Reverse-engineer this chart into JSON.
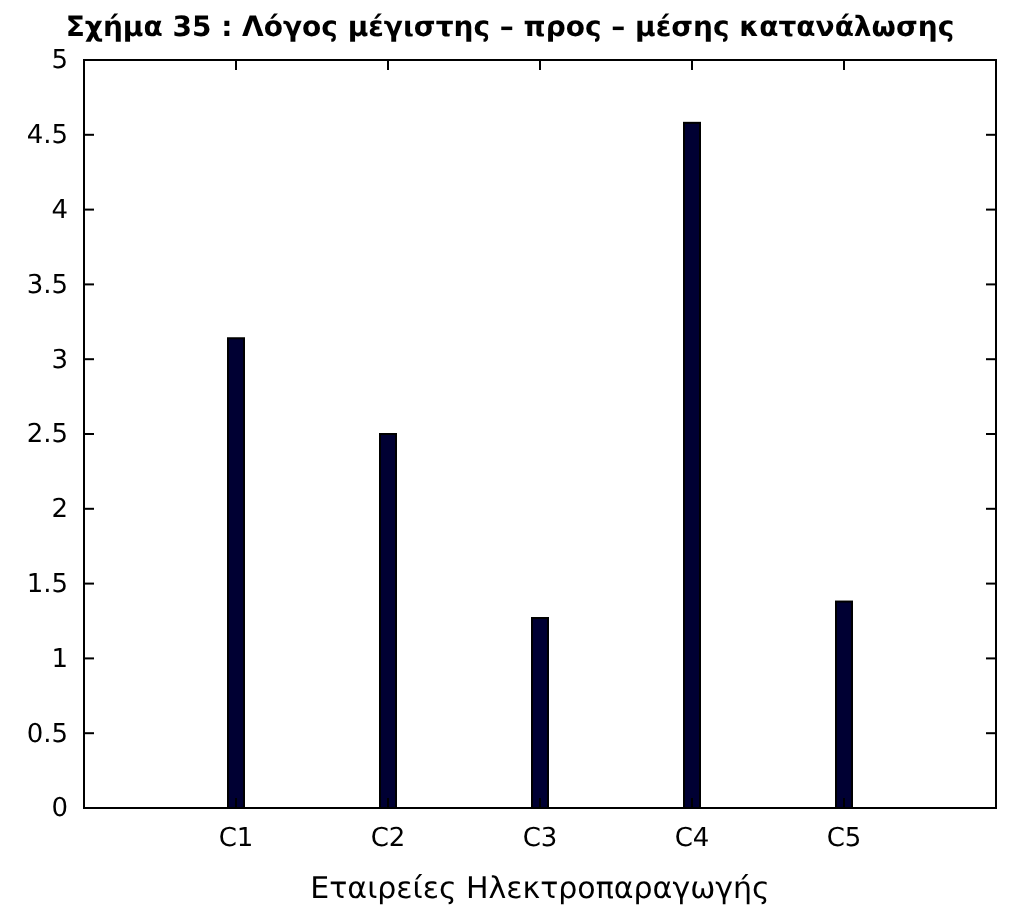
{
  "chart_data": {
    "type": "bar",
    "title": "Σχήμα 35 : Λόγος μέγιστης – προς – μέσης κατανάλωσης",
    "xlabel": "Εταιρείες Ηλεκτροπαραγωγής",
    "categories": [
      "C1",
      "C2",
      "C3",
      "C4",
      "C5"
    ],
    "values": [
      3.14,
      2.5,
      1.27,
      4.58,
      1.38
    ],
    "color": "#000033",
    "ylim": [
      0,
      5
    ],
    "yticks": [
      0,
      0.5,
      1,
      1.5,
      2,
      2.5,
      3,
      3.5,
      4,
      4.5,
      5
    ],
    "grid": false
  }
}
